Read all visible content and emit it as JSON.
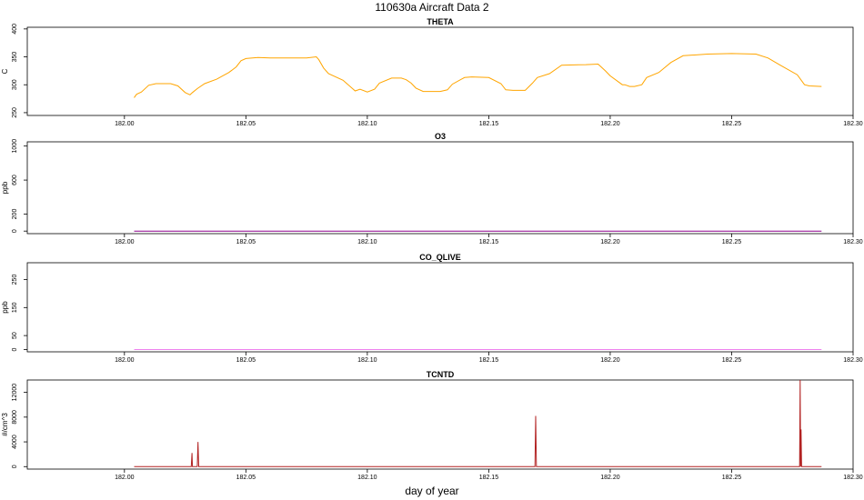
{
  "figure": {
    "title": "110630a   Aircraft Data 2",
    "xlabel": "day of year"
  },
  "chart_data": [
    {
      "type": "line",
      "title": "THETA",
      "ylabel": "C",
      "color": "#ffa500",
      "xlim": [
        181.96,
        182.3
      ],
      "ylim": [
        245,
        403
      ],
      "xticks": [
        182.0,
        182.05,
        182.1,
        182.15,
        182.2,
        182.25,
        182.3
      ],
      "xtick_labels": [
        "182.00",
        "182.05",
        "182.10",
        "182.15",
        "182.20",
        "182.25",
        "182.30"
      ],
      "yticks": [
        250,
        300,
        350,
        400
      ],
      "ytick_labels": [
        "250",
        "300",
        "350",
        "400"
      ],
      "series": [
        {
          "x": [
            182.004,
            182.005,
            182.007,
            182.01,
            182.013,
            182.019,
            182.022,
            182.025,
            182.027,
            182.028,
            182.03,
            182.033,
            182.038,
            182.043,
            182.046,
            182.048,
            182.05,
            182.055,
            182.06,
            182.065,
            182.07,
            182.075,
            182.079,
            182.08,
            182.082,
            182.084,
            182.09,
            182.095,
            182.097,
            182.1,
            182.103,
            182.105,
            182.11,
            182.114,
            182.116,
            182.118,
            182.12,
            182.123,
            182.13,
            182.133,
            182.135,
            182.14,
            182.143,
            182.15,
            182.155,
            182.157,
            182.16,
            182.165,
            182.168,
            182.17,
            182.175,
            182.18,
            182.19,
            182.195,
            182.198,
            182.2,
            182.205,
            182.206,
            182.208,
            182.21,
            182.213,
            182.215,
            182.22,
            182.225,
            182.23,
            182.24,
            182.25,
            182.26,
            182.265,
            182.27,
            182.277,
            182.28,
            182.282,
            182.287
          ],
          "y": [
            277,
            283,
            287,
            299,
            302,
            302,
            298,
            286,
            282,
            286,
            293,
            302,
            310,
            322,
            332,
            343,
            347,
            349,
            348,
            348,
            348,
            348,
            350,
            345,
            330,
            320,
            308,
            289,
            292,
            287,
            292,
            303,
            312,
            312,
            309,
            303,
            294,
            288,
            288,
            291,
            301,
            313,
            314,
            313,
            302,
            291,
            290,
            290,
            303,
            313,
            320,
            335,
            336,
            337,
            325,
            316,
            300,
            300,
            297,
            297,
            300,
            313,
            322,
            340,
            352,
            355,
            356,
            355,
            348,
            335,
            318,
            300,
            298,
            297
          ]
        }
      ]
    },
    {
      "type": "line",
      "title": "O3",
      "ylabel": "ppb",
      "color": "#8b008b",
      "xlim": [
        181.96,
        182.3
      ],
      "ylim": [
        -30,
        1050
      ],
      "xticks": [
        182.0,
        182.05,
        182.1,
        182.15,
        182.2,
        182.25,
        182.3
      ],
      "xtick_labels": [
        "182.00",
        "182.05",
        "182.10",
        "182.15",
        "182.20",
        "182.25",
        "182.30"
      ],
      "yticks": [
        0,
        200,
        600,
        1000
      ],
      "ytick_labels": [
        "0",
        "200",
        "600",
        "1000"
      ],
      "series": [
        {
          "x": [
            182.004,
            182.287
          ],
          "y": [
            0,
            0
          ]
        }
      ]
    },
    {
      "type": "line",
      "title": "CO_QLIVE",
      "ylabel": "ppb",
      "color": "#ee82ee",
      "xlim": [
        181.96,
        182.3
      ],
      "ylim": [
        -8,
        310
      ],
      "xticks": [
        182.0,
        182.05,
        182.1,
        182.15,
        182.2,
        182.25,
        182.3
      ],
      "xtick_labels": [
        "182.00",
        "182.05",
        "182.10",
        "182.15",
        "182.20",
        "182.25",
        "182.30"
      ],
      "yticks": [
        0,
        50,
        150,
        250
      ],
      "ytick_labels": [
        "0",
        "50",
        "150",
        "250"
      ],
      "series": [
        {
          "x": [
            182.004,
            182.287
          ],
          "y": [
            0,
            0
          ]
        }
      ]
    },
    {
      "type": "line",
      "title": "TCNTD",
      "ylabel": "#/cm^3",
      "color": "#b22222",
      "xlim": [
        181.96,
        182.3
      ],
      "ylim": [
        -400,
        14000
      ],
      "xticks": [
        182.0,
        182.05,
        182.1,
        182.15,
        182.2,
        182.25,
        182.3
      ],
      "xtick_labels": [
        "182.00",
        "182.05",
        "182.10",
        "182.15",
        "182.20",
        "182.25",
        "182.30"
      ],
      "yticks": [
        0,
        4000,
        8000,
        12000
      ],
      "ytick_labels": [
        "0",
        "4000",
        "8000",
        "12000"
      ],
      "series": [
        {
          "x": [
            182.004,
            182.0275,
            182.0278,
            182.028,
            182.03,
            182.0303,
            182.0306,
            182.169,
            182.1693,
            182.1696,
            182.278,
            182.2782,
            182.2784,
            182.2786,
            182.2788,
            182.279,
            182.287
          ],
          "y": [
            0,
            0,
            2200,
            0,
            0,
            4000,
            0,
            0,
            8200,
            0,
            0,
            14000,
            0,
            6000,
            0,
            0,
            0
          ]
        }
      ]
    }
  ]
}
